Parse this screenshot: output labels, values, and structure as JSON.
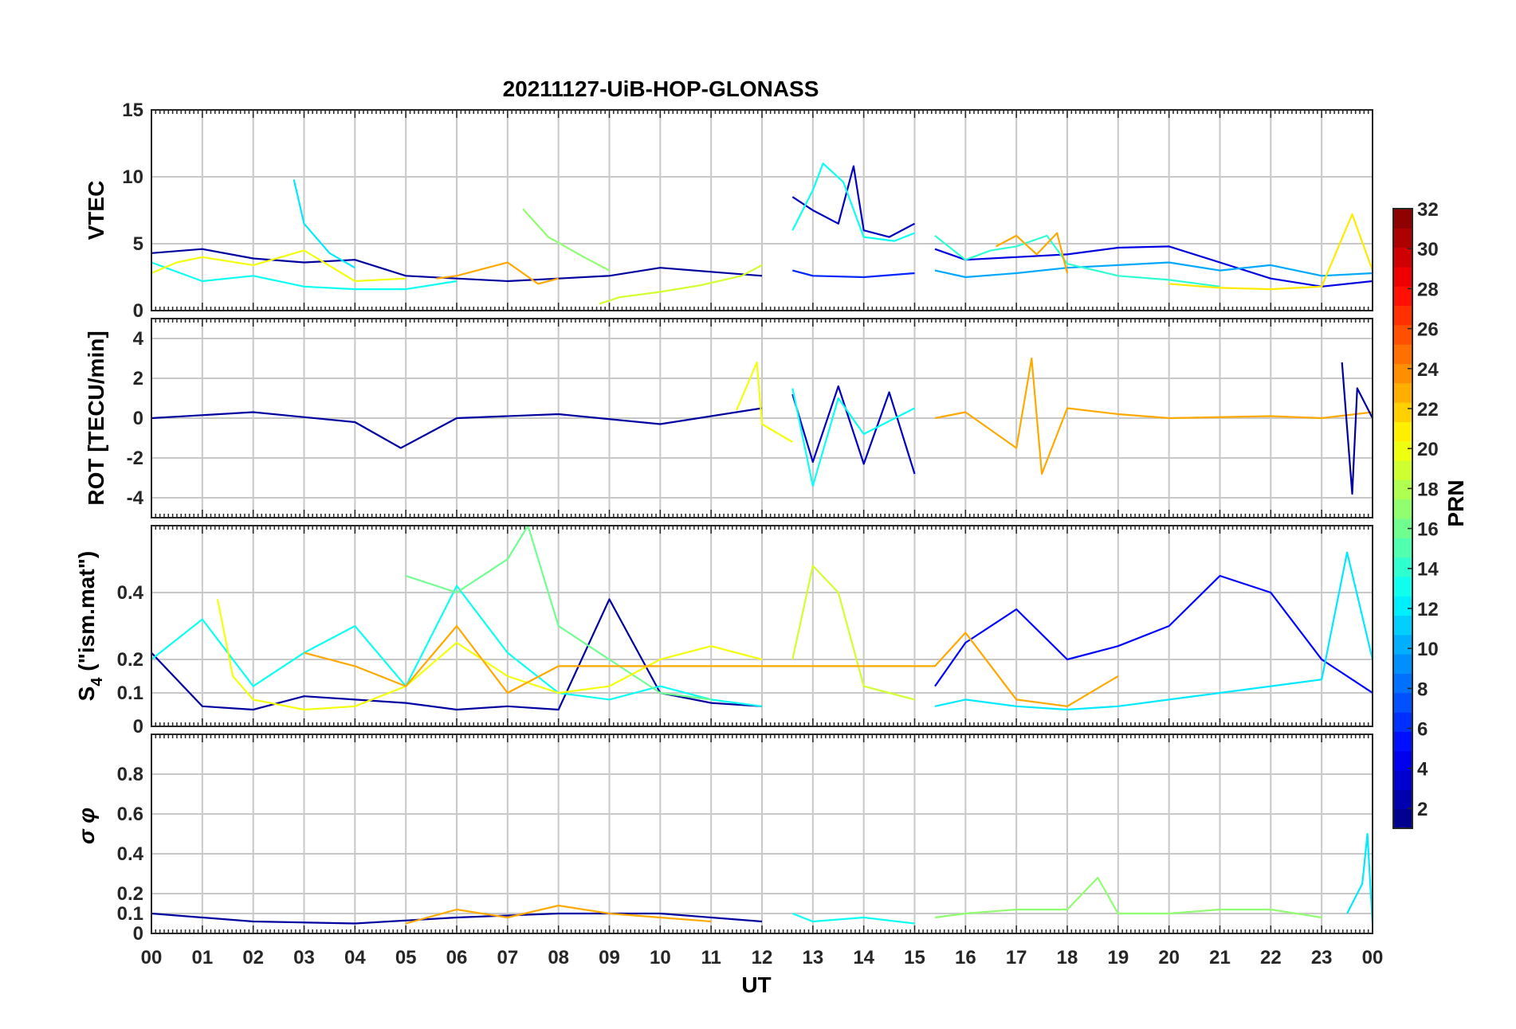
{
  "chart_data": {
    "type": "line",
    "title": "20211127-UiB-HOP-GLONASS",
    "xlabel": "UT",
    "x_ticks": [
      "00",
      "01",
      "02",
      "03",
      "04",
      "05",
      "06",
      "07",
      "08",
      "09",
      "10",
      "11",
      "12",
      "13",
      "14",
      "15",
      "16",
      "17",
      "18",
      "19",
      "20",
      "21",
      "22",
      "23",
      "00"
    ],
    "xlim": [
      0,
      24
    ],
    "colorbar": {
      "label": "PRN",
      "range": [
        1,
        32
      ],
      "ticks": [
        "2",
        "4",
        "6",
        "8",
        "10",
        "12",
        "14",
        "16",
        "18",
        "20",
        "22",
        "24",
        "26",
        "28",
        "30",
        "32"
      ],
      "colormap": "jet"
    },
    "data_gaps_hours": [
      [
        12.0,
        12.6
      ],
      [
        15.0,
        15.4
      ]
    ],
    "panels": [
      {
        "id": "vtec",
        "ylabel": "VTEC",
        "ylim": [
          0,
          15
        ],
        "yticks": [
          "0",
          "5",
          "10",
          "15"
        ],
        "series": [
          {
            "prn": 2,
            "x": [
              0,
              1,
              2,
              3,
              4,
              5,
              6,
              7,
              8,
              9,
              10,
              11,
              12
            ],
            "y": [
              4.3,
              4.6,
              3.9,
              3.6,
              3.8,
              2.6,
              2.4,
              2.2,
              2.4,
              2.6,
              3.2,
              2.9,
              2.6
            ]
          },
          {
            "prn": 3,
            "x": [
              12.6,
              13,
              13.5,
              13.8,
              14,
              14.5,
              15
            ],
            "y": [
              8.5,
              7.5,
              6.5,
              10.8,
              6.0,
              5.5,
              6.5
            ]
          },
          {
            "prn": 4,
            "x": [
              15.4,
              16,
              17,
              18,
              19,
              20,
              21,
              22,
              23,
              24
            ],
            "y": [
              4.6,
              3.8,
              4.0,
              4.2,
              4.7,
              4.8,
              3.6,
              2.4,
              1.8,
              2.2
            ]
          },
          {
            "prn": 6,
            "x": [
              12.6,
              13,
              14,
              15
            ],
            "y": [
              3.0,
              2.6,
              2.5,
              2.8
            ]
          },
          {
            "prn": 10,
            "x": [
              15.4,
              16,
              17,
              18,
              19,
              20,
              21,
              22,
              23,
              24
            ],
            "y": [
              3.0,
              2.5,
              2.8,
              3.2,
              3.4,
              3.6,
              3.0,
              3.4,
              2.6,
              2.8
            ]
          },
          {
            "prn": 12,
            "x": [
              2.8,
              3.0,
              3.5,
              4
            ],
            "y": [
              9.8,
              6.5,
              4.3,
              3.2
            ]
          },
          {
            "prn": 13,
            "x": [
              0,
              1,
              2,
              3,
              4,
              5,
              6
            ],
            "y": [
              3.6,
              2.2,
              2.6,
              1.8,
              1.6,
              1.6,
              2.2
            ]
          },
          {
            "prn": 13,
            "x": [
              12.6,
              13,
              13.2,
              13.6,
              14,
              14.6,
              15
            ],
            "y": [
              6.0,
              9.0,
              11.0,
              9.6,
              5.5,
              5.2,
              5.8
            ]
          },
          {
            "prn": 14,
            "x": [
              15.4,
              16,
              16.5,
              17,
              17.6,
              18,
              19,
              20,
              21
            ],
            "y": [
              5.6,
              3.8,
              4.5,
              4.8,
              5.6,
              3.5,
              2.6,
              2.3,
              1.8
            ]
          },
          {
            "prn": 17,
            "x": [
              7.3,
              7.8,
              8.5,
              9
            ],
            "y": [
              7.6,
              5.5,
              4.0,
              3.0
            ]
          },
          {
            "prn": 19,
            "x": [
              8.8,
              9.2,
              10,
              10.8,
              11.6,
              12
            ],
            "y": [
              0.5,
              1.0,
              1.4,
              1.9,
              2.6,
              3.4
            ]
          },
          {
            "prn": 20,
            "x": [
              0,
              0.5,
              1,
              2,
              3,
              4,
              5
            ],
            "y": [
              2.8,
              3.6,
              4.0,
              3.4,
              4.5,
              2.2,
              2.4
            ]
          },
          {
            "prn": 21,
            "x": [
              20,
              21,
              22,
              23,
              23.6,
              24
            ],
            "y": [
              2.0,
              1.7,
              1.6,
              1.8,
              7.2,
              3.0
            ]
          },
          {
            "prn": 23,
            "x": [
              5.6,
              6,
              6.6,
              7,
              7.6,
              8
            ],
            "y": [
              2.4,
              2.6,
              3.2,
              3.6,
              2.0,
              2.4
            ]
          },
          {
            "prn": 23,
            "x": [
              16.6,
              17,
              17.4,
              17.8,
              18
            ],
            "y": [
              4.8,
              5.6,
              4.2,
              5.8,
              2.8
            ]
          }
        ]
      },
      {
        "id": "rot",
        "ylabel": "ROT [TECU/min]",
        "ylim": [
          -5,
          5
        ],
        "yticks": [
          "-4",
          "-2",
          "0",
          "2",
          "4"
        ],
        "series": [
          {
            "prn": 2,
            "x": [
              0,
              2,
              4,
              4.9,
              6,
              8,
              10,
              12
            ],
            "y": [
              0,
              0.3,
              -0.2,
              -1.5,
              0,
              0.2,
              -0.3,
              0.5
            ]
          },
          {
            "prn": 3,
            "x": [
              12.6,
              13,
              13.5,
              14,
              14.5,
              15
            ],
            "y": [
              1.2,
              -2.2,
              1.6,
              -2.3,
              1.3,
              -2.8
            ]
          },
          {
            "prn": 13,
            "x": [
              12.6,
              13,
              13.5,
              14,
              15
            ],
            "y": [
              1.5,
              -3.4,
              1.0,
              -0.8,
              0.5
            ]
          },
          {
            "prn": 20,
            "x": [
              11.5,
              11.9,
              12.0,
              12.6
            ],
            "y": [
              0.4,
              2.8,
              -0.3,
              -1.2
            ]
          },
          {
            "prn": 23,
            "x": [
              15.4,
              16,
              17,
              17.3,
              17.5,
              18,
              19,
              20,
              22,
              23,
              24
            ],
            "y": [
              0,
              0.3,
              -1.5,
              3.0,
              -2.8,
              0.5,
              0.2,
              0,
              0.1,
              0,
              0.3
            ]
          },
          {
            "prn": 2,
            "x": [
              23.4,
              23.6,
              23.7,
              24
            ],
            "y": [
              2.8,
              -3.8,
              1.5,
              0
            ]
          }
        ]
      },
      {
        "id": "s4",
        "ylabel_main": "S",
        "ylabel_sub": "4",
        "ylabel_rest": " (\"ism.mat\")",
        "ylim": [
          0,
          0.6
        ],
        "yticks": [
          "0",
          "0.1",
          "0.2",
          "0.4"
        ],
        "series": [
          {
            "prn": 2,
            "x": [
              0,
              1,
              2,
              3,
              4,
              5,
              6,
              7,
              8,
              9,
              10,
              11,
              12
            ],
            "y": [
              0.22,
              0.06,
              0.05,
              0.09,
              0.08,
              0.07,
              0.05,
              0.06,
              0.05,
              0.38,
              0.1,
              0.07,
              0.06
            ]
          },
          {
            "prn": 5,
            "x": [
              15.4,
              16,
              17,
              18,
              19,
              20,
              21,
              22,
              23,
              24
            ],
            "y": [
              0.12,
              0.25,
              0.35,
              0.2,
              0.24,
              0.3,
              0.45,
              0.4,
              0.2,
              0.1
            ]
          },
          {
            "prn": 13,
            "x": [
              0,
              1,
              2,
              3,
              4,
              5,
              6,
              7,
              8,
              9,
              10,
              11,
              12
            ],
            "y": [
              0.2,
              0.32,
              0.12,
              0.22,
              0.3,
              0.12,
              0.42,
              0.22,
              0.1,
              0.08,
              0.12,
              0.08,
              0.06
            ]
          },
          {
            "prn": 16,
            "x": [
              5,
              6,
              7,
              7.4,
              8,
              9,
              10,
              11
            ],
            "y": [
              0.45,
              0.4,
              0.5,
              0.6,
              0.3,
              0.2,
              0.1,
              0.08
            ]
          },
          {
            "prn": 20,
            "x": [
              1.3,
              1.6,
              2,
              3,
              4,
              5,
              6,
              7,
              8,
              9,
              10,
              11,
              12
            ],
            "y": [
              0.38,
              0.15,
              0.08,
              0.05,
              0.06,
              0.12,
              0.25,
              0.15,
              0.1,
              0.12,
              0.2,
              0.24,
              0.2
            ]
          },
          {
            "prn": 19,
            "x": [
              12.6,
              13,
              13.5,
              14,
              14.5,
              15
            ],
            "y": [
              0.2,
              0.48,
              0.4,
              0.12,
              0.1,
              0.08
            ]
          },
          {
            "prn": 23,
            "x": [
              3,
              4,
              5,
              6,
              7,
              8,
              15.4,
              16,
              17,
              18,
              19
            ],
            "y": [
              0.22,
              0.18,
              0.12,
              0.3,
              0.1,
              0.18,
              0.18,
              0.28,
              0.08,
              0.06,
              0.15
            ]
          },
          {
            "prn": 12,
            "x": [
              15.4,
              16,
              17,
              18,
              19,
              20,
              21,
              22,
              23,
              23.5,
              24
            ],
            "y": [
              0.06,
              0.08,
              0.06,
              0.05,
              0.06,
              0.08,
              0.1,
              0.12,
              0.14,
              0.52,
              0.2
            ]
          }
        ]
      },
      {
        "id": "sigma_phi",
        "ylabel": "σ φ",
        "ylim": [
          0,
          1
        ],
        "yticks": [
          "0",
          "0.1",
          "0.2",
          "0.4",
          "0.6",
          "0.8"
        ],
        "series": [
          {
            "prn": 2,
            "x": [
              0,
              2,
              4,
              6,
              8,
              10,
              12
            ],
            "y": [
              0.1,
              0.06,
              0.05,
              0.08,
              0.1,
              0.1,
              0.06
            ]
          },
          {
            "prn": 13,
            "x": [
              12.6,
              13,
              14,
              15
            ],
            "y": [
              0.1,
              0.06,
              0.08,
              0.05
            ]
          },
          {
            "prn": 23,
            "x": [
              5,
              6,
              7,
              8,
              9,
              10,
              11
            ],
            "y": [
              0.05,
              0.12,
              0.08,
              0.14,
              0.1,
              0.08,
              0.06
            ]
          },
          {
            "prn": 17,
            "x": [
              15.4,
              16,
              17,
              18,
              18.6,
              19,
              20,
              21,
              22,
              23
            ],
            "y": [
              0.08,
              0.1,
              0.12,
              0.12,
              0.28,
              0.1,
              0.1,
              0.12,
              0.12,
              0.08
            ]
          },
          {
            "prn": 12,
            "x": [
              23.5,
              23.8,
              23.9,
              24
            ],
            "y": [
              0.1,
              0.25,
              0.5,
              0.05
            ]
          }
        ]
      }
    ]
  }
}
